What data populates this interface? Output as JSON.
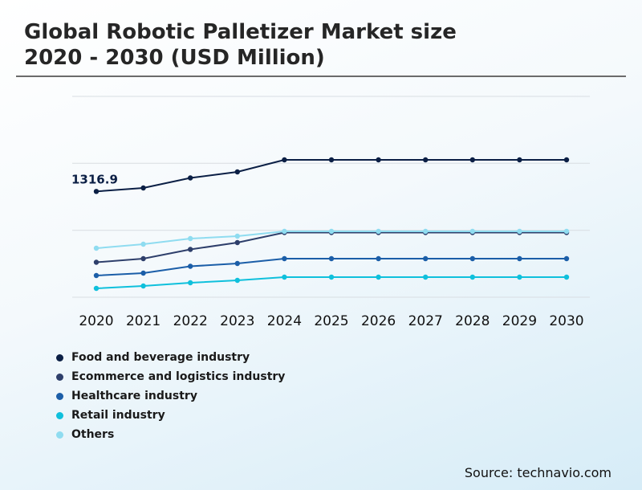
{
  "title_line1": "Global Robotic Palletizer Market size",
  "title_line2": "2020 - 2030 (USD Million)",
  "source": "Source: technavio.com",
  "chart_data": {
    "type": "line",
    "title": "Global Robotic Palletizer Market size 2020 - 2030 (USD Million)",
    "xlabel": "",
    "ylabel": "",
    "categories": [
      "2020",
      "2021",
      "2022",
      "2023",
      "2024",
      "2025",
      "2026",
      "2027",
      "2028",
      "2029",
      "2030"
    ],
    "ylim": [
      0,
      2500
    ],
    "grid": true,
    "legend_position": "bottom-left",
    "annotation": {
      "series": 0,
      "index": 0,
      "text": "1316.9"
    },
    "series": [
      {
        "name": "Food and beverage industry",
        "color": "#0b1f45",
        "values": [
          1316.9,
          1360,
          1485,
          1560,
          1710,
          1710,
          1710,
          1710,
          1710,
          1710,
          1710
        ]
      },
      {
        "name": "Ecommerce and logistics industry",
        "color": "#2e3f6b",
        "values": [
          435,
          480,
          595,
          680,
          805,
          805,
          805,
          805,
          805,
          805,
          805
        ]
      },
      {
        "name": "Healthcare industry",
        "color": "#1b5ea8",
        "values": [
          270,
          300,
          385,
          420,
          480,
          480,
          480,
          480,
          480,
          480,
          480
        ]
      },
      {
        "name": "Retail industry",
        "color": "#0fc0dc",
        "values": [
          110,
          140,
          180,
          210,
          250,
          250,
          250,
          250,
          250,
          250,
          250
        ]
      },
      {
        "name": "Others",
        "color": "#8fdcf0",
        "values": [
          610,
          660,
          730,
          760,
          820,
          820,
          820,
          820,
          820,
          820,
          820
        ]
      }
    ]
  }
}
